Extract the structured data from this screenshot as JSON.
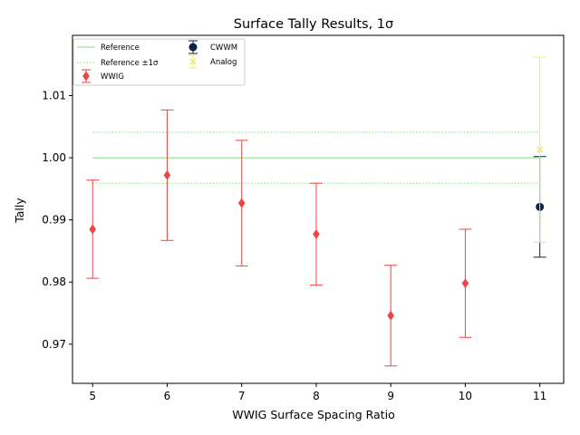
{
  "chart_data": {
    "type": "scatter",
    "title": "Surface Tally Results, 1σ",
    "xlabel": "WWIG Surface Spacing Ratio",
    "ylabel": "Tally",
    "xlim": [
      4.73,
      11.32
    ],
    "ylim": [
      0.9637,
      1.0197
    ],
    "x_ticks": [
      "5",
      "6",
      "7",
      "8",
      "9",
      "10",
      "11"
    ],
    "y_ticks": [
      "0.97",
      "0.98",
      "0.99",
      "1.00",
      "1.01"
    ],
    "grid": false,
    "legend_position": "top-left",
    "reference": {
      "name": "Reference",
      "value": 1.0,
      "x_range": [
        5,
        11
      ],
      "color": "#7fdc7f"
    },
    "reference_band": {
      "name": "Reference ±1σ",
      "low": 0.9959,
      "high": 1.0041,
      "color": "#7fdc7f"
    },
    "series": [
      {
        "name": "WWIG",
        "marker": "diamond",
        "color": "#ef4444",
        "x": [
          5,
          6,
          7,
          8,
          9,
          10
        ],
        "y": [
          0.9885,
          0.9972,
          0.9927,
          0.9877,
          0.9746,
          0.9798
        ],
        "err": [
          0.0079,
          0.0105,
          0.0101,
          0.0082,
          0.0081,
          0.0087
        ]
      },
      {
        "name": "CWWM",
        "marker": "circle",
        "color": "#0b2447",
        "x": [
          11
        ],
        "y": [
          0.9921
        ],
        "err": [
          0.0081
        ]
      },
      {
        "name": "Analog",
        "marker": "x",
        "color": "#e8ec7a",
        "x": [
          11
        ],
        "y": [
          1.0013
        ],
        "err": [
          0.0149
        ]
      }
    ]
  }
}
